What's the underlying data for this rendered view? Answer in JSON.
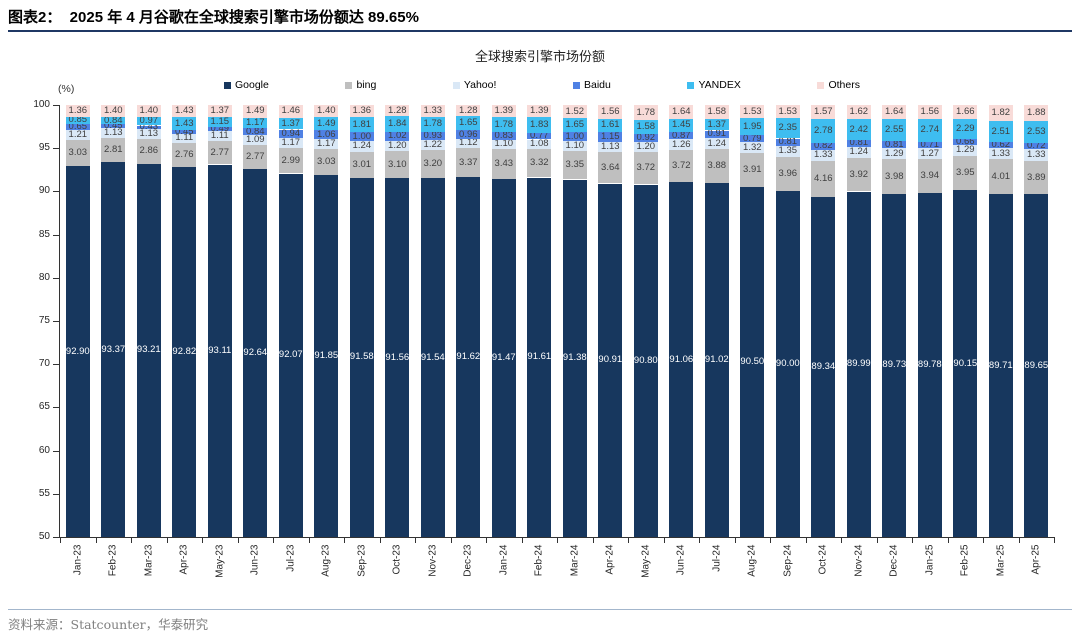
{
  "header": {
    "title": "图表2：  2025 年 4 月谷歌在全球搜索引擎市场份额达 89.65%"
  },
  "chart_data": {
    "type": "bar",
    "stacked": true,
    "title": "全球搜索引擎市场份额",
    "unit_label": "(%)",
    "xlabel": "",
    "ylabel": "(%)",
    "ylim": [
      50,
      100
    ],
    "ytick_step": 5,
    "grid": false,
    "legend_position": "top",
    "value_label_decimals": 2,
    "categories": [
      "Jan-23",
      "Feb-23",
      "Mar-23",
      "Apr-23",
      "May-23",
      "Jun-23",
      "Jul-23",
      "Aug-23",
      "Sep-23",
      "Oct-23",
      "Nov-23",
      "Dec-23",
      "Jan-24",
      "Feb-24",
      "Mar-24",
      "Apr-24",
      "May-24",
      "Jun-24",
      "Jul-24",
      "Aug-24",
      "Sep-24",
      "Oct-24",
      "Nov-24",
      "Dec-24",
      "Jan-25",
      "Feb-25",
      "Mar-25",
      "Apr-25"
    ],
    "series": [
      {
        "name": "Google",
        "color": "#17375E",
        "label_color": "#FFFFFF",
        "values": [
          92.9,
          93.37,
          93.21,
          92.82,
          93.11,
          92.64,
          92.07,
          91.85,
          91.58,
          91.56,
          91.54,
          91.62,
          91.47,
          91.61,
          91.38,
          90.91,
          90.8,
          91.06,
          91.02,
          90.5,
          90.0,
          89.34,
          89.99,
          89.73,
          89.78,
          90.15,
          89.71,
          89.65
        ]
      },
      {
        "name": "bing",
        "color": "#BFBFBF",
        "label_color": "#3F3F3F",
        "values": [
          3.03,
          2.81,
          2.86,
          2.76,
          2.77,
          2.77,
          2.99,
          3.03,
          3.01,
          3.1,
          3.2,
          3.37,
          3.43,
          3.32,
          3.35,
          3.64,
          3.72,
          3.72,
          3.88,
          3.91,
          3.96,
          4.16,
          3.92,
          3.98,
          3.94,
          3.95,
          4.01,
          3.89
        ]
      },
      {
        "name": "Yahoo!",
        "color": "#DAE8F6",
        "label_color": "#3F3F3F",
        "values": [
          1.21,
          1.13,
          1.13,
          1.11,
          1.11,
          1.09,
          1.17,
          1.17,
          1.24,
          1.2,
          1.22,
          1.12,
          1.1,
          1.08,
          1.1,
          1.13,
          1.2,
          1.26,
          1.24,
          1.32,
          1.35,
          1.33,
          1.24,
          1.29,
          1.27,
          1.29,
          1.33,
          1.33
        ]
      },
      {
        "name": "Baidu",
        "color": "#4F81E4",
        "label_color": "#3F3F3F",
        "values": [
          0.65,
          0.45,
          0.43,
          0.45,
          0.49,
          0.84,
          0.94,
          1.06,
          1.0,
          1.02,
          0.93,
          0.96,
          0.83,
          0.77,
          1.0,
          1.15,
          0.92,
          0.87,
          0.91,
          0.79,
          0.81,
          0.82,
          0.81,
          0.81,
          0.71,
          0.66,
          0.62,
          0.72
        ]
      },
      {
        "name": "YANDEX",
        "color": "#3EBDF0",
        "label_color": "#3F3F3F",
        "values": [
          0.85,
          0.84,
          0.97,
          1.43,
          1.15,
          1.17,
          1.37,
          1.49,
          1.81,
          1.84,
          1.78,
          1.65,
          1.78,
          1.83,
          1.65,
          1.61,
          1.58,
          1.45,
          1.37,
          1.95,
          2.35,
          2.78,
          2.42,
          2.55,
          2.74,
          2.29,
          2.51,
          2.53
        ]
      },
      {
        "name": "Others",
        "color": "#F8DBD8",
        "label_color": "#3F3F3F",
        "values": [
          1.36,
          1.4,
          1.4,
          1.43,
          1.37,
          1.49,
          1.46,
          1.4,
          1.36,
          1.28,
          1.33,
          1.28,
          1.39,
          1.39,
          1.52,
          1.56,
          1.78,
          1.64,
          1.58,
          1.53,
          1.53,
          1.57,
          1.62,
          1.64,
          1.56,
          1.66,
          1.82,
          1.88
        ]
      }
    ]
  },
  "footer": {
    "source": "资料来源：Statcounter，华泰研究"
  }
}
